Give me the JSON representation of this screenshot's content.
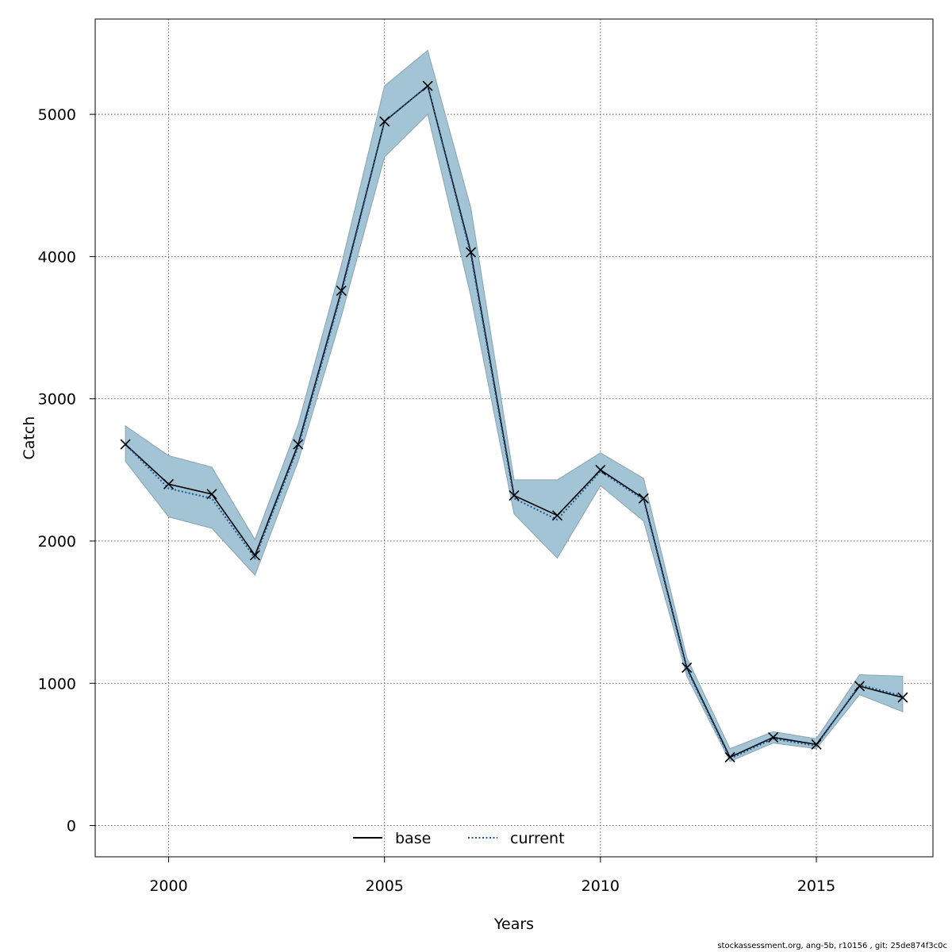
{
  "chart_data": {
    "type": "line",
    "xlabel": "Years",
    "ylabel": "Catch",
    "xlim": [
      1998.3,
      2017.7
    ],
    "ylim": [
      -220,
      5670
    ],
    "x_ticks": [
      2000,
      2005,
      2010,
      2015
    ],
    "y_ticks": [
      0,
      1000,
      2000,
      3000,
      4000,
      5000
    ],
    "grid": true,
    "legend_position": "bottom-center",
    "x": [
      1999,
      2000,
      2001,
      2002,
      2003,
      2004,
      2005,
      2006,
      2007,
      2008,
      2009,
      2010,
      2011,
      2012,
      2013,
      2014,
      2015,
      2016,
      2017
    ],
    "series": [
      {
        "name": "base",
        "style": "solid",
        "color": "#000000",
        "values": [
          2680,
          2400,
          2330,
          1900,
          2680,
          3760,
          4950,
          5200,
          4030,
          2320,
          2180,
          2500,
          2300,
          1110,
          480,
          620,
          570,
          980,
          900
        ]
      },
      {
        "name": "current",
        "style": "dotted",
        "color": "#1a5a9a",
        "values": [
          2680,
          2370,
          2300,
          1880,
          2660,
          3740,
          4950,
          5200,
          4010,
          2300,
          2150,
          2490,
          2290,
          1100,
          470,
          610,
          560,
          990,
          910
        ]
      }
    ],
    "points": {
      "marker": "x",
      "values": [
        2680,
        2400,
        2330,
        1900,
        2680,
        3760,
        4950,
        5200,
        4030,
        2320,
        2180,
        2500,
        2300,
        1110,
        480,
        620,
        570,
        980,
        900
      ]
    },
    "band": {
      "color": "#a3c4d4",
      "upper": [
        2810,
        2600,
        2520,
        2010,
        2820,
        3940,
        5200,
        5450,
        4340,
        2430,
        2430,
        2620,
        2440,
        1180,
        540,
        660,
        610,
        1060,
        1050
      ],
      "lower": [
        2560,
        2170,
        2090,
        1760,
        2560,
        3580,
        4700,
        5000,
        3720,
        2190,
        1880,
        2390,
        2140,
        1050,
        450,
        580,
        540,
        920,
        800
      ]
    }
  },
  "footer": "stockassessment.org, ang-5b, r10156 , git: 25de874f3c0c"
}
